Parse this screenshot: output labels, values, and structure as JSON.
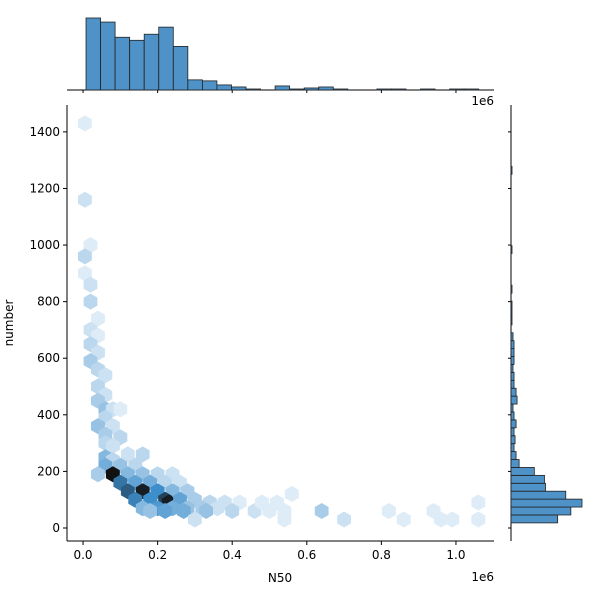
{
  "chart_data": {
    "type": "hexbin-joint",
    "xlabel": "N50",
    "ylabel": "number",
    "x_offset_label": "1e6",
    "color": "#3b86c2",
    "xlim": [
      -0.043,
      1.102
    ],
    "ylim": [
      -46,
      1495
    ],
    "xticks": [
      {
        "value": 0,
        "label": "0.0"
      },
      {
        "value": 0.2,
        "label": "0.2"
      },
      {
        "value": 0.4,
        "label": "0.4"
      },
      {
        "value": 0.6,
        "label": "0.6"
      },
      {
        "value": 0.8,
        "label": "0.8"
      },
      {
        "value": 1,
        "label": "1.0"
      }
    ],
    "yticks": [
      0,
      200,
      400,
      600,
      800,
      1000,
      1200,
      1400
    ],
    "hexbins": {
      "x": [
        0.005,
        0.005,
        0.02,
        0.005,
        0.005,
        0.02,
        0.02,
        0.04,
        0.02,
        0.04,
        0.02,
        0.04,
        0.02,
        0.04,
        0.06,
        0.04,
        0.06,
        0.04,
        0.06,
        0.08,
        0.1,
        0.06,
        0.04,
        0.08,
        0.06,
        0.1,
        0.06,
        0.08,
        0.06,
        0.08,
        0.12,
        0.16,
        0.06,
        0.1,
        0.14,
        0.04,
        0.08,
        0.12,
        0.16,
        0.2,
        0.24,
        0.1,
        0.14,
        0.18,
        0.22,
        0.26,
        0.12,
        0.16,
        0.2,
        0.24,
        0.28,
        0.14,
        0.18,
        0.22,
        0.23,
        0.26,
        0.3,
        0.34,
        0.38,
        0.42,
        0.16,
        0.2,
        0.24,
        0.28,
        0.32,
        0.36,
        0.18,
        0.22,
        0.27,
        0.33,
        0.4,
        0.46,
        0.5,
        0.54,
        0.64,
        0.82,
        0.94,
        1.06,
        0.56,
        0.48,
        0.52,
        0.3,
        0.54,
        0.7,
        0.86,
        0.96,
        1.06,
        0.99
      ],
      "y": [
        1430,
        1160,
        1000,
        960,
        900,
        860,
        800,
        740,
        700,
        680,
        650,
        620,
        590,
        560,
        540,
        500,
        470,
        450,
        420,
        420,
        420,
        390,
        360,
        360,
        330,
        320,
        300,
        290,
        250,
        240,
        260,
        260,
        220,
        220,
        220,
        190,
        190,
        190,
        190,
        190,
        190,
        160,
        160,
        160,
        160,
        160,
        130,
        130,
        130,
        130,
        130,
        100,
        100,
        100,
        90,
        100,
        100,
        90,
        90,
        90,
        70,
        70,
        70,
        70,
        70,
        70,
        60,
        60,
        60,
        60,
        60,
        60,
        60,
        60,
        60,
        60,
        60,
        90,
        120,
        90,
        90,
        30,
        30,
        30,
        30,
        30,
        30,
        30
      ],
      "counts": [
        1,
        2,
        1,
        3,
        1,
        2,
        3,
        1,
        2,
        1,
        3,
        2,
        4,
        3,
        2,
        3,
        2,
        4,
        5,
        2,
        1,
        3,
        5,
        2,
        4,
        3,
        3,
        2,
        6,
        3,
        2,
        3,
        7,
        5,
        3,
        4,
        20,
        6,
        5,
        3,
        2,
        12,
        8,
        7,
        3,
        2,
        14,
        19,
        10,
        6,
        4,
        11,
        10,
        16,
        19,
        8,
        4,
        3,
        2,
        1,
        6,
        9,
        7,
        5,
        4,
        2,
        5,
        8,
        7,
        5,
        3,
        2,
        1,
        1,
        4,
        1,
        1,
        1,
        1,
        1,
        1,
        2,
        1,
        2,
        1,
        1,
        1,
        1
      ]
    },
    "x_hist": {
      "bins": [
        0.008,
        0.047,
        0.086,
        0.125,
        0.164,
        0.203,
        0.242,
        0.281,
        0.32,
        0.359,
        0.398,
        0.437,
        0.476,
        0.515,
        0.554,
        0.593,
        0.632,
        0.671,
        0.71,
        0.749,
        0.788,
        0.827,
        0.866,
        0.905,
        0.944,
        0.983,
        1.022,
        1.061
      ],
      "counts": [
        71,
        67,
        52,
        49,
        55,
        62,
        43,
        10,
        9,
        5,
        3,
        1,
        0,
        4,
        1,
        2,
        3,
        1,
        0,
        0,
        1,
        1,
        0,
        1,
        0,
        1,
        1
      ]
    },
    "y_hist": {
      "bins": [
        18,
        46,
        74,
        102,
        130,
        158,
        186,
        214,
        242,
        270,
        298,
        326,
        354,
        382,
        410,
        438,
        466,
        494,
        522,
        550,
        578,
        606,
        634,
        662,
        690,
        718,
        746,
        774,
        802,
        830,
        858,
        886,
        914,
        942,
        970,
        998,
        1026,
        1054,
        1082,
        1110,
        1138,
        1166,
        1194,
        1222,
        1250,
        1278,
        1306,
        1334,
        1362,
        1390,
        1418,
        1446
      ],
      "counts": [
        46,
        59,
        70,
        54,
        34,
        33,
        23,
        8,
        5,
        3,
        4,
        3,
        5,
        3,
        2,
        6,
        5,
        3,
        3,
        2,
        3,
        3,
        3,
        2,
        0,
        1,
        1,
        1,
        0,
        1,
        0,
        0,
        0,
        0,
        1,
        0,
        0,
        0,
        0,
        0,
        0,
        0,
        0,
        0,
        1,
        0,
        0,
        0,
        0,
        0,
        0
      ]
    }
  }
}
